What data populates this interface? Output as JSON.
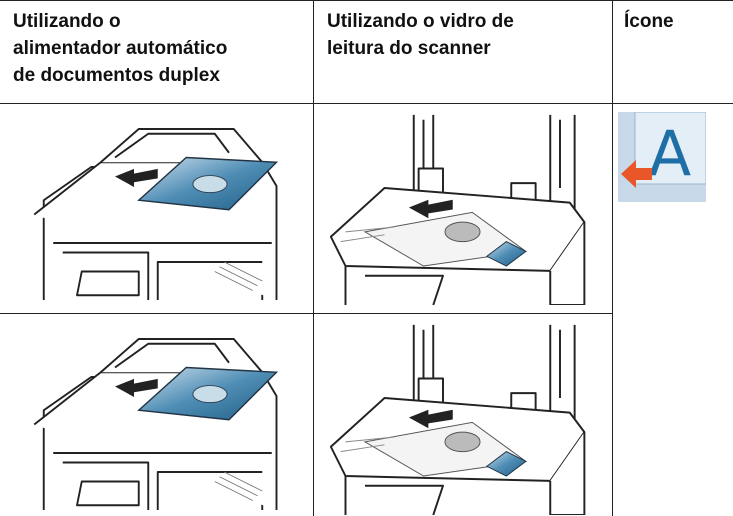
{
  "table": {
    "headers": [
      "Utilizando o\nalimentador automático\nde documentos duplex",
      "Utilizando o vidro de\nleitura do scanner",
      "Ícone"
    ]
  }
}
